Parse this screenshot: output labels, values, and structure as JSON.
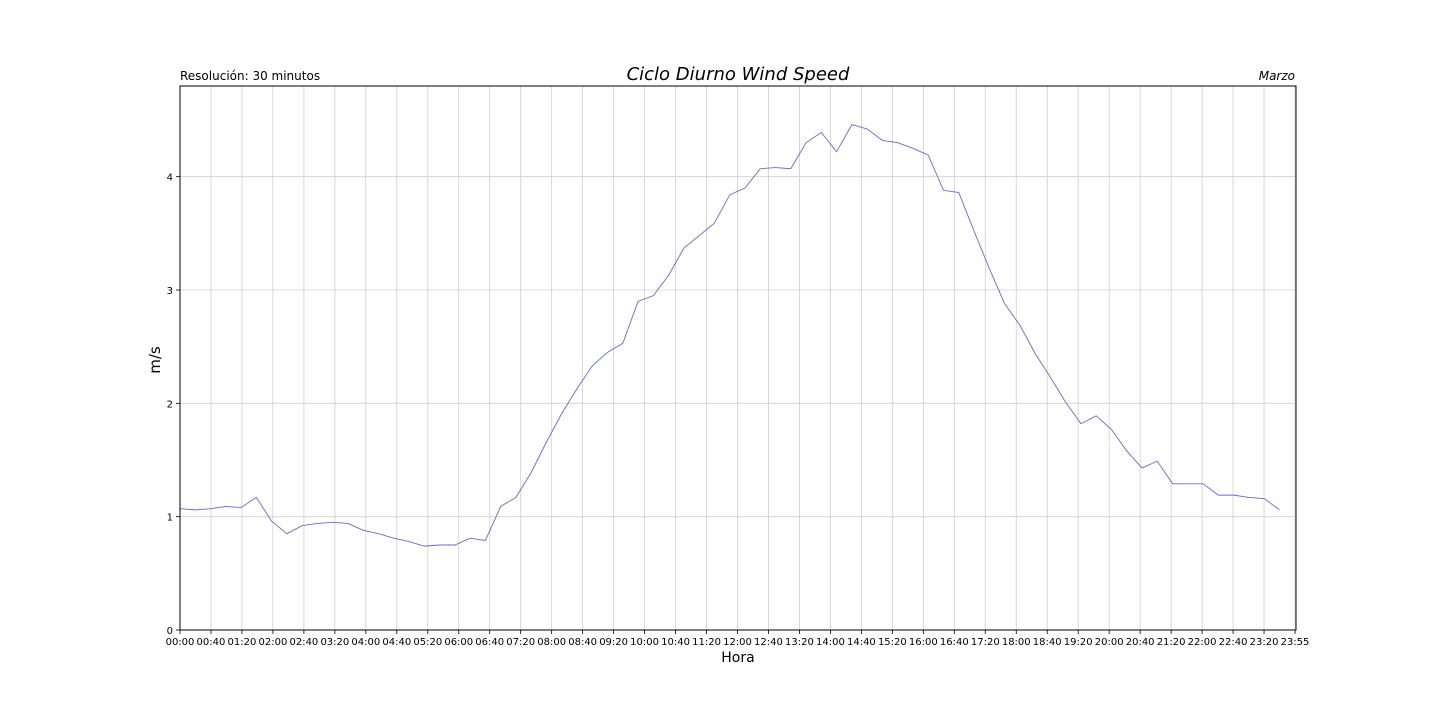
{
  "chart_data": {
    "type": "line",
    "title": "Ciclo Diurno Wind Speed",
    "subtitle_left": "Resolución: 30 minutos",
    "subtitle_right": "Marzo",
    "xlabel": "Hora",
    "ylabel": "m/s",
    "ylim": [
      0,
      4.8
    ],
    "yticks": [
      "0",
      "1",
      "2",
      "3",
      "4"
    ],
    "grid": true,
    "xticks": [
      "00:00",
      "00:40",
      "01:20",
      "02:00",
      "02:40",
      "03:20",
      "04:00",
      "04:40",
      "05:20",
      "06:00",
      "06:40",
      "07:20",
      "08:00",
      "08:40",
      "09:20",
      "10:00",
      "10:40",
      "11:20",
      "12:00",
      "12:40",
      "13:20",
      "14:00",
      "14:40",
      "15:20",
      "16:00",
      "16:40",
      "17:20",
      "18:00",
      "18:40",
      "19:20",
      "20:00",
      "20:40",
      "21:20",
      "22:00",
      "22:40",
      "23:20",
      "23:55"
    ],
    "series": [
      {
        "color": "#6a6acb",
        "values": [
          1.07,
          1.06,
          1.07,
          1.09,
          1.08,
          1.17,
          0.96,
          0.85,
          0.92,
          0.94,
          0.95,
          0.94,
          0.88,
          0.85,
          0.81,
          0.78,
          0.74,
          0.75,
          0.75,
          0.81,
          0.79,
          1.09,
          1.17,
          1.39,
          1.66,
          1.91,
          2.13,
          2.33,
          2.45,
          2.53,
          2.9,
          2.95,
          3.13,
          3.37,
          3.48,
          3.59,
          3.84,
          3.9,
          4.07,
          4.08,
          4.07,
          4.3,
          4.39,
          4.22,
          4.46,
          4.42,
          4.32,
          4.3,
          4.25,
          4.19,
          3.88,
          3.86,
          3.52,
          3.19,
          2.88,
          2.69,
          2.44,
          2.23,
          2.01,
          1.82,
          1.89,
          1.77,
          1.58,
          1.43,
          1.49,
          1.29,
          1.29,
          1.29,
          1.19,
          1.19,
          1.17,
          1.16,
          1.06
        ]
      }
    ]
  }
}
